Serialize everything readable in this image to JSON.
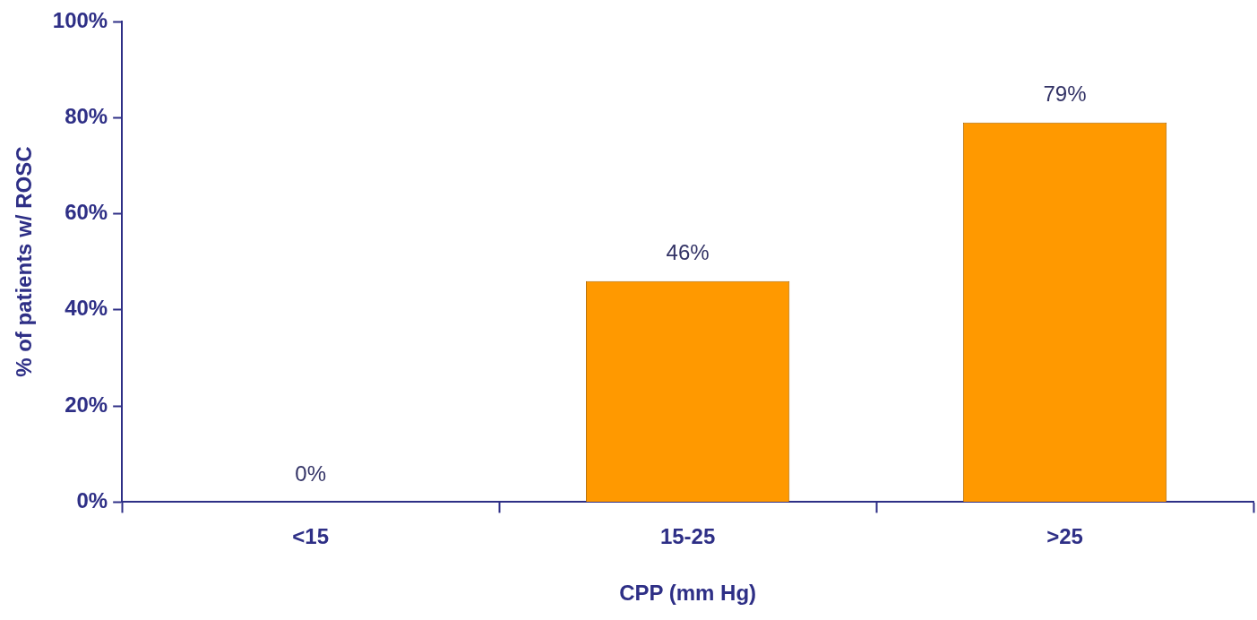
{
  "chart_data": {
    "type": "bar",
    "xlabel": "CPP (mm Hg)",
    "ylabel": "% of patients w/ ROSC",
    "categories": [
      "<15",
      "15-25",
      ">25"
    ],
    "values": [
      0,
      46,
      79
    ],
    "value_labels": [
      "0%",
      "46%",
      "79%"
    ],
    "color": "#ff9900",
    "ylim": [
      0,
      100
    ],
    "yticks": [
      {
        "value": 0,
        "label": "0%"
      },
      {
        "value": 20,
        "label": "20%"
      },
      {
        "value": 40,
        "label": "40%"
      },
      {
        "value": 60,
        "label": "60%"
      },
      {
        "value": 80,
        "label": "80%"
      },
      {
        "value": 100,
        "label": "100%"
      }
    ],
    "grid": false,
    "legend": false
  }
}
